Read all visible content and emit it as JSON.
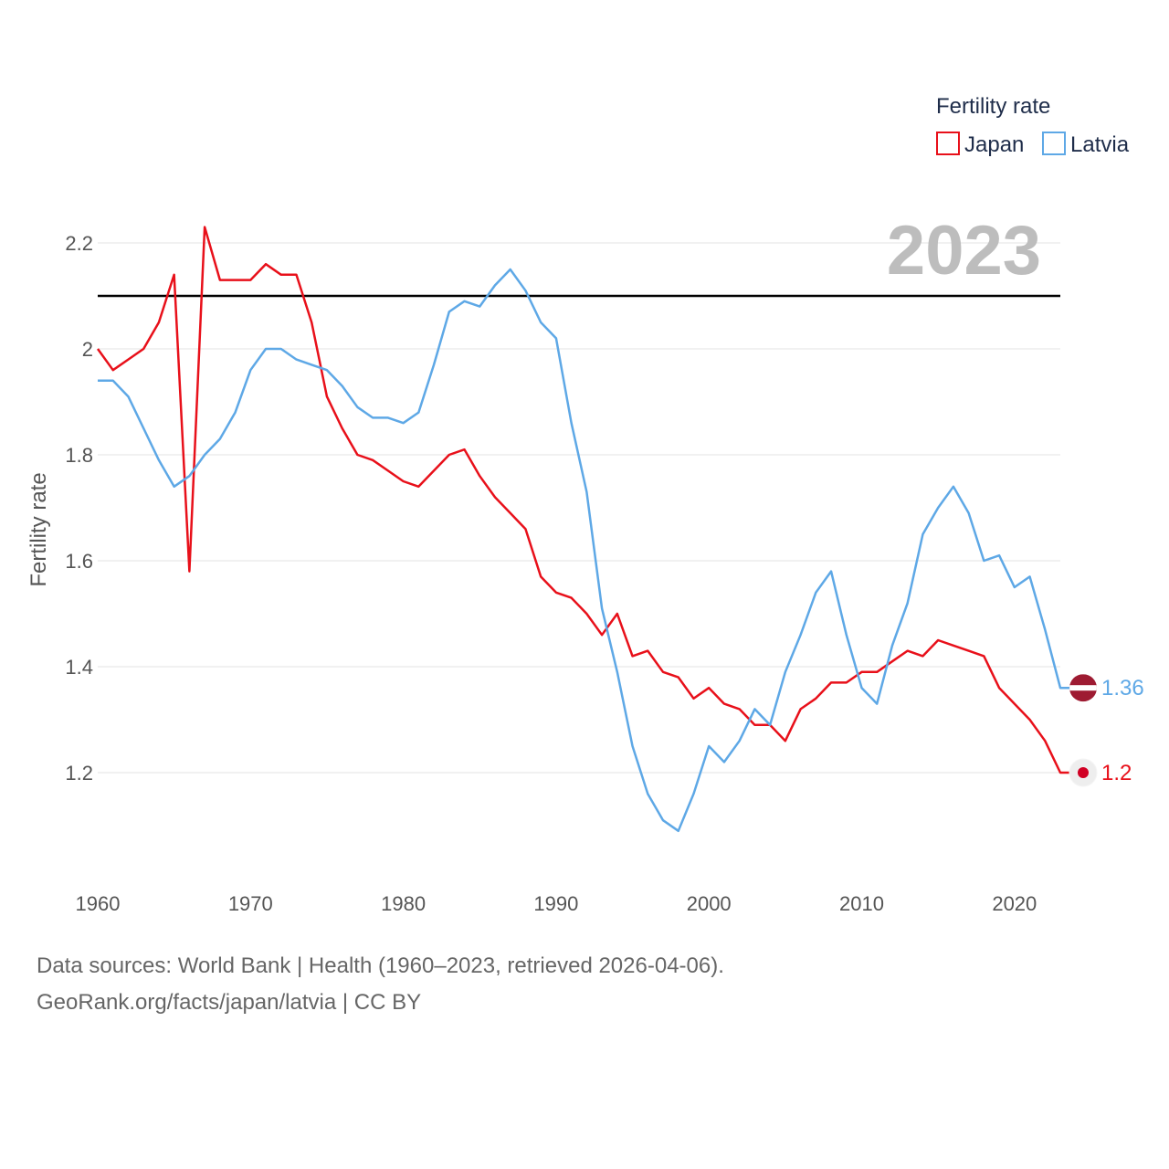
{
  "chart_data": {
    "type": "line",
    "title": "",
    "year_label": "2023",
    "legend_title": "Fertility rate",
    "ylabel": "Fertility rate",
    "xlabel": "",
    "ylim": [
      1.0,
      2.3
    ],
    "xlim": [
      1960,
      2023
    ],
    "y_ticks": [
      1.2,
      1.4,
      1.6,
      1.8,
      2.0,
      2.2
    ],
    "y_tick_labels": [
      "1.2",
      "1.4",
      "1.6",
      "1.8",
      "2",
      "2.2"
    ],
    "x_ticks": [
      1960,
      1970,
      1980,
      1990,
      2000,
      2010,
      2020
    ],
    "x_tick_labels": [
      "1960",
      "1970",
      "1980",
      "1990",
      "2000",
      "2010",
      "2020"
    ],
    "reference_line": 2.1,
    "x": [
      1960,
      1961,
      1962,
      1963,
      1964,
      1965,
      1966,
      1967,
      1968,
      1969,
      1970,
      1971,
      1972,
      1973,
      1974,
      1975,
      1976,
      1977,
      1978,
      1979,
      1980,
      1981,
      1982,
      1983,
      1984,
      1985,
      1986,
      1987,
      1988,
      1989,
      1990,
      1991,
      1992,
      1993,
      1994,
      1995,
      1996,
      1997,
      1998,
      1999,
      2000,
      2001,
      2002,
      2003,
      2004,
      2005,
      2006,
      2007,
      2008,
      2009,
      2010,
      2011,
      2012,
      2013,
      2014,
      2015,
      2016,
      2017,
      2018,
      2019,
      2020,
      2021,
      2022,
      2023
    ],
    "series": [
      {
        "name": "Japan",
        "color": "#e8101a",
        "end_label": "1.2",
        "values": [
          2.0,
          1.96,
          1.98,
          2.0,
          2.05,
          2.14,
          1.58,
          2.23,
          2.13,
          2.13,
          2.13,
          2.16,
          2.14,
          2.14,
          2.05,
          1.91,
          1.85,
          1.8,
          1.79,
          1.77,
          1.75,
          1.74,
          1.77,
          1.8,
          1.81,
          1.76,
          1.72,
          1.69,
          1.66,
          1.57,
          1.54,
          1.53,
          1.5,
          1.46,
          1.5,
          1.42,
          1.43,
          1.39,
          1.38,
          1.34,
          1.36,
          1.33,
          1.32,
          1.29,
          1.29,
          1.26,
          1.32,
          1.34,
          1.37,
          1.37,
          1.39,
          1.39,
          1.41,
          1.43,
          1.42,
          1.45,
          1.44,
          1.43,
          1.42,
          1.36,
          1.33,
          1.3,
          1.26,
          1.2
        ]
      },
      {
        "name": "Latvia",
        "color": "#5ea8e6",
        "end_label": "1.36",
        "values": [
          1.94,
          1.94,
          1.91,
          1.85,
          1.79,
          1.74,
          1.76,
          1.8,
          1.83,
          1.88,
          1.96,
          2.0,
          2.0,
          1.98,
          1.97,
          1.96,
          1.93,
          1.89,
          1.87,
          1.87,
          1.86,
          1.88,
          1.97,
          2.07,
          2.09,
          2.08,
          2.12,
          2.15,
          2.11,
          2.05,
          2.02,
          1.86,
          1.73,
          1.51,
          1.39,
          1.25,
          1.16,
          1.11,
          1.09,
          1.16,
          1.25,
          1.22,
          1.26,
          1.32,
          1.29,
          1.39,
          1.46,
          1.54,
          1.58,
          1.46,
          1.36,
          1.33,
          1.44,
          1.52,
          1.65,
          1.7,
          1.74,
          1.69,
          1.6,
          1.61,
          1.55,
          1.57,
          1.47,
          1.36
        ]
      }
    ]
  },
  "footer": {
    "line1": "Data sources: World Bank | Health (1960–2023, retrieved 2026-04-06).",
    "line2": "GeoRank.org/facts/japan/latvia | CC BY"
  }
}
